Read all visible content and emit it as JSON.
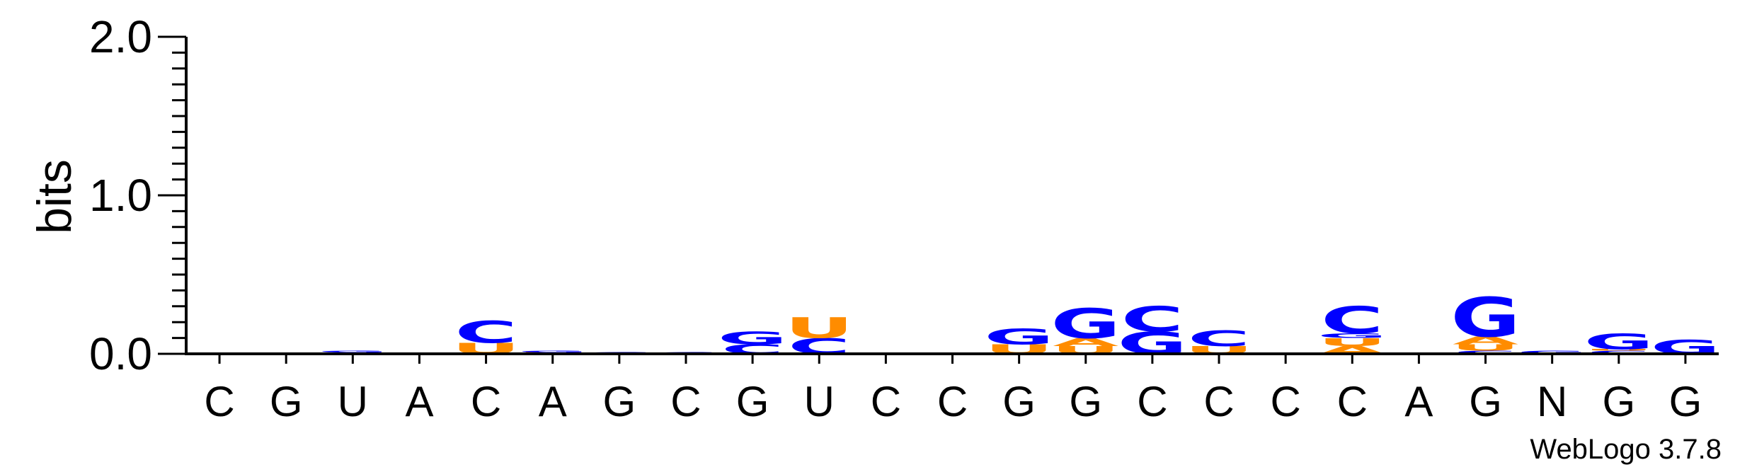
{
  "chart_data": {
    "type": "sequence-logo",
    "ylabel": "bits",
    "ylim": [
      0,
      2.0
    ],
    "yticks": [
      "0.0",
      "1.0",
      "2.0"
    ],
    "colors": {
      "G": "#0000FF",
      "C": "#0000FF",
      "U": "#FF8C00",
      "A": "#FF8C00"
    },
    "positions": [
      {
        "label": "C",
        "stack": []
      },
      {
        "label": "G",
        "stack": []
      },
      {
        "label": "U",
        "stack": [
          {
            "l": "C",
            "h": 0.01
          },
          {
            "l": "G",
            "h": 0.01
          }
        ]
      },
      {
        "label": "A",
        "stack": []
      },
      {
        "label": "C",
        "stack": [
          {
            "l": "U",
            "h": 0.07
          },
          {
            "l": "C",
            "h": 0.14
          }
        ]
      },
      {
        "label": "A",
        "stack": [
          {
            "l": "U",
            "h": 0.01
          },
          {
            "l": "G",
            "h": 0.01
          }
        ]
      },
      {
        "label": "G",
        "stack": [
          {
            "l": "G",
            "h": 0.01
          }
        ]
      },
      {
        "label": "C",
        "stack": [
          {
            "l": "C",
            "h": 0.01
          }
        ]
      },
      {
        "label": "G",
        "stack": [
          {
            "l": "C",
            "h": 0.06
          },
          {
            "l": "G",
            "h": 0.08
          }
        ]
      },
      {
        "label": "U",
        "stack": [
          {
            "l": "C",
            "h": 0.1
          },
          {
            "l": "U",
            "h": 0.13
          }
        ]
      },
      {
        "label": "C",
        "stack": []
      },
      {
        "label": "C",
        "stack": []
      },
      {
        "label": "G",
        "stack": [
          {
            "l": "U",
            "h": 0.06
          },
          {
            "l": "G",
            "h": 0.1
          }
        ]
      },
      {
        "label": "G",
        "stack": [
          {
            "l": "U",
            "h": 0.05
          },
          {
            "l": "A",
            "h": 0.05
          },
          {
            "l": "G",
            "h": 0.19
          }
        ]
      },
      {
        "label": "C",
        "stack": [
          {
            "l": "G",
            "h": 0.14
          },
          {
            "l": "C",
            "h": 0.16
          }
        ]
      },
      {
        "label": "C",
        "stack": [
          {
            "l": "U",
            "h": 0.05
          },
          {
            "l": "C",
            "h": 0.1
          }
        ]
      },
      {
        "label": "C",
        "stack": []
      },
      {
        "label": "C",
        "stack": [
          {
            "l": "A",
            "h": 0.05
          },
          {
            "l": "U",
            "h": 0.05
          },
          {
            "l": "G",
            "h": 0.03
          },
          {
            "l": "C",
            "h": 0.17
          }
        ]
      },
      {
        "label": "A",
        "stack": []
      },
      {
        "label": "G",
        "stack": [
          {
            "l": "C",
            "h": 0.02
          },
          {
            "l": "U",
            "h": 0.04
          },
          {
            "l": "A",
            "h": 0.05
          },
          {
            "l": "G",
            "h": 0.25
          }
        ]
      },
      {
        "label": "N",
        "stack": [
          {
            "l": "G",
            "h": 0.02
          }
        ]
      },
      {
        "label": "G",
        "stack": [
          {
            "l": "C",
            "h": 0.02
          },
          {
            "l": "U",
            "h": 0.01
          },
          {
            "l": "G",
            "h": 0.1
          }
        ]
      },
      {
        "label": "G",
        "stack": [
          {
            "l": "G",
            "h": 0.09
          }
        ]
      }
    ]
  },
  "footer": {
    "version": "WebLogo 3.7.8"
  }
}
